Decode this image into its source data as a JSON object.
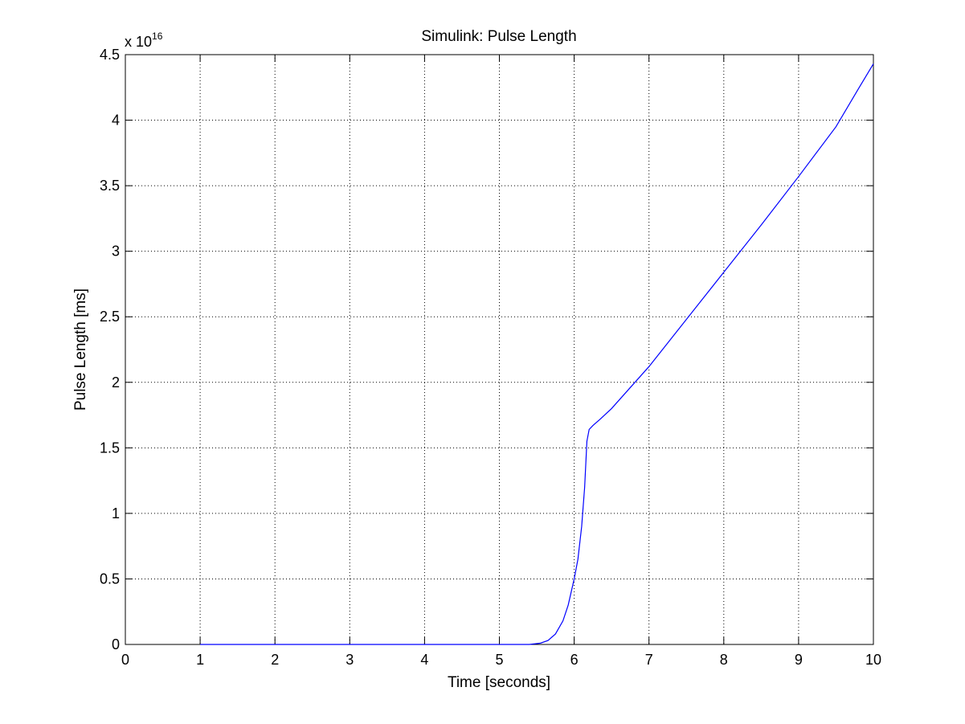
{
  "chart_data": {
    "type": "line",
    "title": "Simulink: Pulse Length",
    "xlabel": "Time [seconds]",
    "ylabel": "Pulse Length [ms]",
    "y_multiplier_base": "x 10",
    "y_multiplier_exponent": "16",
    "xlim": [
      0,
      10
    ],
    "ylim": [
      0,
      4.5
    ],
    "x_ticks": [
      0,
      1,
      2,
      3,
      4,
      5,
      6,
      7,
      8,
      9,
      10
    ],
    "x_tick_labels": [
      "0",
      "1",
      "2",
      "3",
      "4",
      "5",
      "6",
      "7",
      "8",
      "9",
      "10"
    ],
    "y_ticks": [
      0,
      0.5,
      1,
      1.5,
      2,
      2.5,
      3,
      3.5,
      4,
      4.5
    ],
    "y_tick_labels": [
      "0",
      "0.5",
      "1",
      "1.5",
      "2",
      "2.5",
      "3",
      "3.5",
      "4",
      "4.5"
    ],
    "grid": true,
    "line_color": "#0000ff",
    "series": [
      {
        "x": [
          1.0,
          2.0,
          3.0,
          4.0,
          5.0,
          5.4,
          5.55,
          5.65,
          5.75,
          5.85,
          5.92,
          6.0,
          6.05,
          6.1,
          6.14,
          6.17,
          6.2,
          6.25,
          6.35,
          6.5,
          7.0,
          7.5,
          8.0,
          8.5,
          9.0,
          9.5,
          9.8,
          10.0
        ],
        "y": [
          0.0,
          0.0,
          0.0,
          0.0,
          0.0,
          0.0,
          0.01,
          0.03,
          0.08,
          0.18,
          0.3,
          0.5,
          0.65,
          0.9,
          1.2,
          1.55,
          1.64,
          1.67,
          1.72,
          1.8,
          2.12,
          2.48,
          2.84,
          3.2,
          3.57,
          3.95,
          4.24,
          4.43
        ]
      }
    ]
  }
}
